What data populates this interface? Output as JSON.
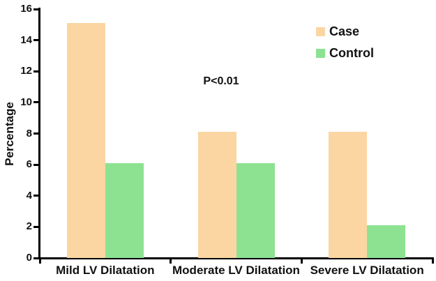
{
  "figure": {
    "background": "#ffffff",
    "axis_color": "#000000",
    "text_color": "#111111"
  },
  "chart_data": {
    "type": "bar",
    "title": "",
    "categories": [
      "Mild LV Dilatation",
      "Moderate LV Dilatation",
      "Severe LV Dilatation"
    ],
    "series": [
      {
        "name": "Case",
        "color": "#FBD6A2",
        "values": [
          15.1,
          8.1,
          8.1
        ]
      },
      {
        "name": "Control",
        "color": "#8DE292",
        "values": [
          6.1,
          6.1,
          2.1
        ]
      }
    ],
    "xlabel": "",
    "ylabel": "Percentage",
    "ylim": [
      0,
      16
    ],
    "yticks": [
      0,
      2,
      4,
      6,
      8,
      10,
      12,
      14,
      16
    ],
    "grid": false,
    "legend_position": "top-right-inside",
    "annotation": "P<0.01"
  }
}
